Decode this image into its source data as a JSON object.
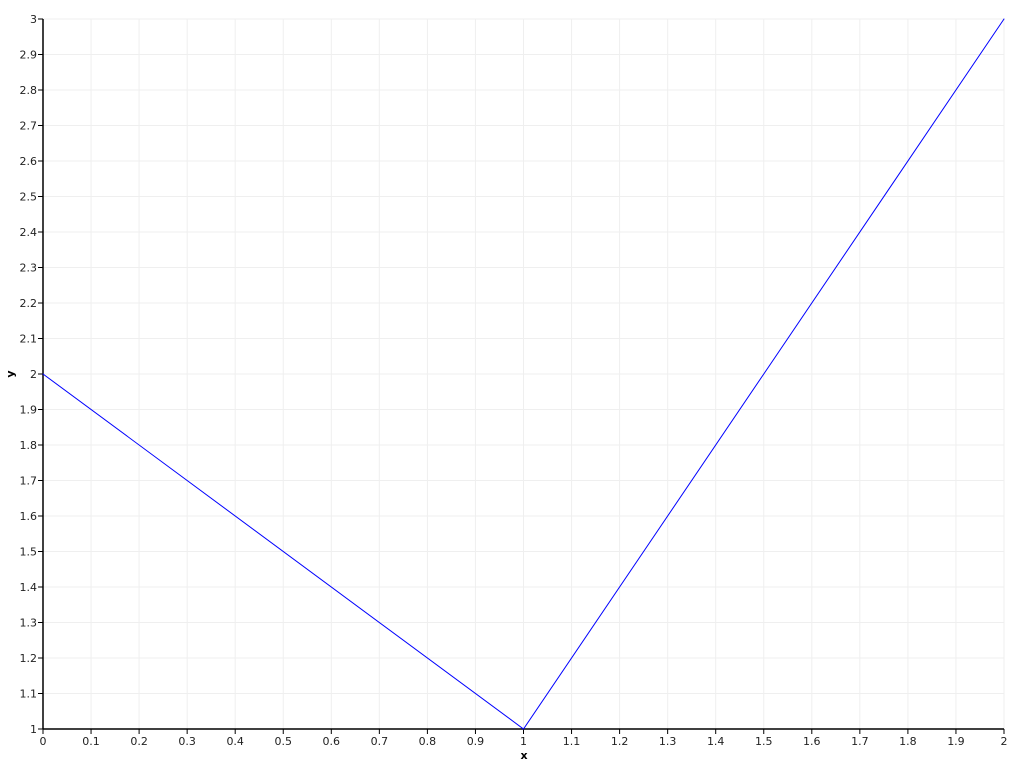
{
  "chart_data": {
    "type": "line",
    "title": "",
    "xlabel": "x",
    "ylabel": "y",
    "xlim": [
      0,
      2
    ],
    "ylim": [
      1,
      3
    ],
    "grid": true,
    "xticks": [
      "0",
      "0.1",
      "0.2",
      "0.3",
      "0.4",
      "0.5",
      "0.6",
      "0.7",
      "0.8",
      "0.9",
      "1",
      "1.1",
      "1.2",
      "1.3",
      "1.4",
      "1.5",
      "1.6",
      "1.7",
      "1.8",
      "1.9",
      "2"
    ],
    "yticks": [
      "1",
      "1.1",
      "1.2",
      "1.3",
      "1.4",
      "1.5",
      "1.6",
      "1.7",
      "1.8",
      "1.9",
      "2",
      "2.1",
      "2.2",
      "2.3",
      "2.4",
      "2.5",
      "2.6",
      "2.7",
      "2.8",
      "2.9",
      "3"
    ],
    "series": [
      {
        "x": [
          0,
          1,
          2
        ],
        "y": [
          2,
          1,
          3
        ],
        "color": "#0000ff"
      }
    ]
  }
}
